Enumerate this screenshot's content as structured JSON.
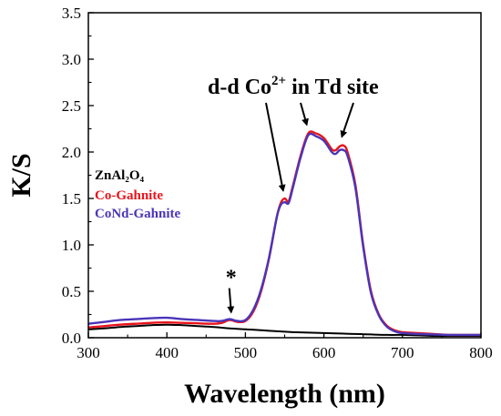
{
  "chart_data": {
    "type": "line",
    "xlabel": "Wavelength (nm)",
    "ylabel": "K/S",
    "xlim": [
      300,
      800
    ],
    "ylim": [
      0.0,
      3.5
    ],
    "x_ticks": [
      "300",
      "400",
      "500",
      "600",
      "700",
      "800"
    ],
    "y_ticks": [
      "0.0",
      "0.5",
      "1.0",
      "1.5",
      "2.0",
      "2.5",
      "3.0",
      "3.5"
    ],
    "grid": false,
    "legend_position": "left",
    "annotation": {
      "prefix": "d-d Co",
      "superscript": "2+",
      "suffix": " in Td site",
      "arrow_targets": [
        {
          "x": 548,
          "y": 1.49
        },
        {
          "x": 578,
          "y": 2.2
        },
        {
          "x": 623,
          "y": 2.07
        }
      ]
    },
    "star_marker": {
      "label": "*",
      "x": 483,
      "y": 0.2
    },
    "series": [
      {
        "name": "ZnAl₂O₄",
        "color": "#000000",
        "x": [
          300,
          320,
          340,
          360,
          380,
          400,
          420,
          440,
          460,
          480,
          500,
          520,
          540,
          560,
          580,
          600,
          620,
          640,
          660,
          680,
          700,
          720,
          740,
          760,
          780,
          800
        ],
        "y": [
          0.09,
          0.1,
          0.115,
          0.125,
          0.135,
          0.14,
          0.135,
          0.125,
          0.115,
          0.1,
          0.09,
          0.08,
          0.07,
          0.06,
          0.055,
          0.05,
          0.045,
          0.04,
          0.035,
          0.03,
          0.03,
          0.025,
          0.02,
          0.02,
          0.02,
          0.02
        ]
      },
      {
        "name": "Co-Gahnite",
        "color": "#e8141c",
        "x": [
          300,
          320,
          340,
          360,
          380,
          400,
          420,
          440,
          460,
          470,
          480,
          490,
          500,
          510,
          520,
          530,
          540,
          545,
          550,
          555,
          560,
          570,
          580,
          590,
          600,
          610,
          615,
          620,
          625,
          630,
          640,
          650,
          660,
          670,
          680,
          690,
          700,
          720,
          740,
          760,
          780,
          800
        ],
        "y": [
          0.11,
          0.125,
          0.14,
          0.15,
          0.16,
          0.165,
          0.16,
          0.155,
          0.15,
          0.16,
          0.19,
          0.17,
          0.18,
          0.28,
          0.5,
          0.85,
          1.3,
          1.45,
          1.5,
          1.47,
          1.62,
          1.95,
          2.2,
          2.2,
          2.15,
          2.03,
          2.02,
          2.06,
          2.07,
          2.0,
          1.65,
          1.0,
          0.5,
          0.25,
          0.13,
          0.08,
          0.06,
          0.05,
          0.04,
          0.03,
          0.03,
          0.03
        ]
      },
      {
        "name": "CoNd-Gahnite",
        "color": "#4a35b8",
        "x": [
          300,
          320,
          340,
          360,
          380,
          400,
          420,
          440,
          460,
          470,
          480,
          490,
          500,
          510,
          520,
          530,
          540,
          545,
          550,
          555,
          560,
          570,
          580,
          590,
          600,
          610,
          615,
          620,
          625,
          630,
          640,
          650,
          660,
          670,
          680,
          690,
          700,
          720,
          740,
          760,
          780,
          800
        ],
        "y": [
          0.15,
          0.17,
          0.19,
          0.2,
          0.21,
          0.215,
          0.2,
          0.19,
          0.18,
          0.18,
          0.2,
          0.18,
          0.19,
          0.3,
          0.52,
          0.86,
          1.3,
          1.43,
          1.46,
          1.45,
          1.6,
          1.93,
          2.18,
          2.17,
          2.12,
          2.0,
          1.98,
          2.02,
          2.02,
          1.96,
          1.62,
          0.98,
          0.48,
          0.24,
          0.12,
          0.07,
          0.05,
          0.04,
          0.035,
          0.03,
          0.03,
          0.03
        ]
      }
    ]
  }
}
